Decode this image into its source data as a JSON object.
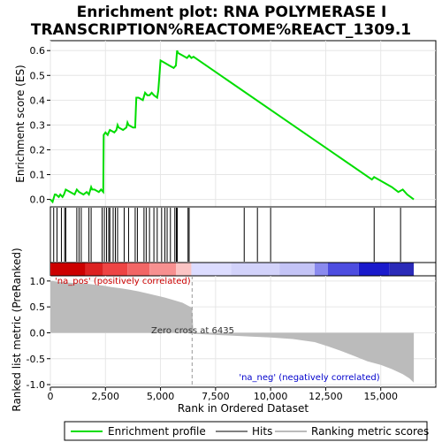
{
  "chart_data": {
    "type": "line",
    "title_lines": [
      "Enrichment plot: RNA POLYMERASE I",
      "TRANSCRIPTION%REACTOME%REACT_1309.1"
    ],
    "top_panel": {
      "ylabel": "Enrichment score (ES)",
      "ylim": [
        -0.03,
        0.64
      ],
      "yticks": [
        0.0,
        0.1,
        0.2,
        0.3,
        0.4,
        0.5,
        0.6
      ],
      "ytick_labels": [
        "0.0",
        "0.1",
        "0.2",
        "0.3",
        "0.4",
        "0.5",
        "0.6"
      ],
      "series": [
        {
          "name": "Enrichment profile",
          "color": "#00dd00",
          "x": [
            0,
            100,
            200,
            250,
            380,
            450,
            550,
            620,
            700,
            900,
            1100,
            1200,
            1300,
            1500,
            1650,
            1750,
            1850,
            1900,
            2000,
            2200,
            2300,
            2400,
            2420,
            2500,
            2600,
            2650,
            2700,
            2900,
            3000,
            3050,
            3100,
            3300,
            3450,
            3500,
            3550,
            3750,
            3850,
            3900,
            4000,
            4200,
            4300,
            4400,
            4500,
            4600,
            4700,
            4850,
            4900,
            5000,
            5200,
            5400,
            5600,
            5700,
            5750,
            5800,
            6000,
            6200,
            6300,
            6400,
            6500,
            14600,
            14700,
            15500,
            15800,
            16000,
            16200,
            16500
          ],
          "y": [
            0.0,
            -0.01,
            0.02,
            0.02,
            0.01,
            0.02,
            0.01,
            0.02,
            0.04,
            0.03,
            0.02,
            0.04,
            0.03,
            0.02,
            0.03,
            0.02,
            0.05,
            0.04,
            0.04,
            0.03,
            0.04,
            0.03,
            0.26,
            0.27,
            0.26,
            0.27,
            0.28,
            0.27,
            0.28,
            0.3,
            0.29,
            0.28,
            0.29,
            0.31,
            0.3,
            0.29,
            0.29,
            0.41,
            0.41,
            0.4,
            0.43,
            0.42,
            0.42,
            0.43,
            0.42,
            0.41,
            0.44,
            0.56,
            0.55,
            0.54,
            0.53,
            0.54,
            0.6,
            0.59,
            0.58,
            0.57,
            0.58,
            0.57,
            0.575,
            0.08,
            0.09,
            0.05,
            0.03,
            0.04,
            0.02,
            0.0
          ]
        }
      ]
    },
    "hits_panel": {
      "hit_positions": [
        150,
        300,
        500,
        650,
        700,
        1200,
        1300,
        1400,
        1750,
        1850,
        2350,
        2450,
        2550,
        2650,
        2700,
        2850,
        2950,
        3050,
        3350,
        3550,
        3850,
        3950,
        4250,
        4350,
        4500,
        4700,
        4850,
        5050,
        5200,
        5300,
        5450,
        5650,
        5720,
        5760,
        6250,
        6300,
        8800,
        9400,
        10000,
        14700,
        15900
      ]
    },
    "rank_bar": {
      "segments": [
        {
          "start": 0,
          "end": 1600,
          "color": "#cc0000"
        },
        {
          "start": 1600,
          "end": 2400,
          "color": "#dd2222"
        },
        {
          "start": 2400,
          "end": 3500,
          "color": "#ee4444"
        },
        {
          "start": 3500,
          "end": 4500,
          "color": "#f26666"
        },
        {
          "start": 4500,
          "end": 5700,
          "color": "#f79090"
        },
        {
          "start": 5700,
          "end": 6400,
          "color": "#fbc4c4"
        },
        {
          "start": 6400,
          "end": 8200,
          "color": "#dcdcff"
        },
        {
          "start": 8200,
          "end": 10400,
          "color": "#d2d2fa"
        },
        {
          "start": 10400,
          "end": 12000,
          "color": "#c4c4f6"
        },
        {
          "start": 12000,
          "end": 12600,
          "color": "#8a8aee"
        },
        {
          "start": 12600,
          "end": 14000,
          "color": "#4d4de0"
        },
        {
          "start": 14000,
          "end": 15400,
          "color": "#1a1acc"
        },
        {
          "start": 15400,
          "end": 16500,
          "color": "#2a2ab8"
        }
      ]
    },
    "bottom_panel": {
      "ylabel": "Ranked list metric (PreRanked)",
      "xlabel": "Rank in Ordered Dataset",
      "ylim": [
        -1.05,
        1.1
      ],
      "yticks": [
        1.0,
        0.5,
        0.0,
        -0.5,
        -1.0
      ],
      "ytick_labels": [
        "1.0",
        "0.5",
        "0.0",
        "-0.5",
        "-1.0"
      ],
      "xlim": [
        0,
        17500
      ],
      "xticks": [
        0,
        2500,
        5000,
        7500,
        10000,
        12500,
        15000
      ],
      "xtick_labels": [
        "0",
        "2,500",
        "5,000",
        "7,500",
        "10,000",
        "12,500",
        "15,000"
      ],
      "metric_curve": {
        "x": [
          0,
          100,
          200,
          400,
          800,
          1200,
          1600,
          2000,
          2400,
          2800,
          3200,
          3600,
          4000,
          4400,
          4800,
          5200,
          5600,
          6000,
          6435,
          6500,
          7000,
          8000,
          9000,
          10000,
          11000,
          12000,
          12600,
          13200,
          13800,
          14400,
          15000,
          15500,
          16000,
          16300,
          16500
        ],
        "y": [
          1.0,
          1.0,
          0.99,
          0.98,
          0.97,
          0.96,
          0.95,
          0.93,
          0.91,
          0.88,
          0.86,
          0.83,
          0.8,
          0.76,
          0.72,
          0.68,
          0.63,
          0.58,
          0.48,
          -0.02,
          -0.03,
          -0.05,
          -0.07,
          -0.09,
          -0.12,
          -0.18,
          -0.26,
          -0.35,
          -0.45,
          -0.55,
          -0.62,
          -0.7,
          -0.8,
          -0.88,
          -0.96
        ]
      },
      "zero_cross_rank": 6435,
      "zero_cross_label": "Zero cross at 6435",
      "pos_label": "'na_pos' (positively correlated)",
      "neg_label": "'na_neg' (negatively correlated)"
    },
    "n_genes": 16500,
    "legend": {
      "items": [
        {
          "label": "Enrichment profile",
          "color": "#00dd00"
        },
        {
          "label": "Hits",
          "color": "#000000"
        },
        {
          "label": "Ranking metric scores",
          "color": "#bbbbbb"
        }
      ]
    }
  }
}
